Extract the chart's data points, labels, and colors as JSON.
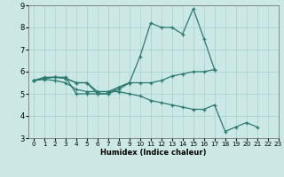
{
  "title": "",
  "xlabel": "Humidex (Indice chaleur)",
  "bg_color": "#cce8e4",
  "grid_color": "#aad4d0",
  "line_color": "#2a7a6e",
  "xlim": [
    -0.5,
    23
  ],
  "ylim": [
    3,
    9
  ],
  "yticks": [
    3,
    4,
    5,
    6,
    7,
    8,
    9
  ],
  "xticks": [
    0,
    1,
    2,
    3,
    4,
    5,
    6,
    7,
    8,
    9,
    10,
    11,
    12,
    13,
    14,
    15,
    16,
    17,
    18,
    19,
    20,
    21,
    22,
    23
  ],
  "lines": [
    [
      5.6,
      5.75,
      5.75,
      5.75,
      5.0,
      5.0,
      5.0,
      5.0,
      5.3,
      5.5,
      6.7,
      8.2,
      8.0,
      8.0,
      7.7,
      8.85,
      7.5,
      6.1,
      null,
      null,
      null,
      null,
      null,
      null
    ],
    [
      5.6,
      5.7,
      5.75,
      5.7,
      5.5,
      5.5,
      5.0,
      5.0,
      5.2,
      5.5,
      null,
      null,
      null,
      null,
      null,
      null,
      null,
      null,
      null,
      null,
      null,
      null,
      null,
      null
    ],
    [
      5.6,
      5.7,
      5.75,
      5.7,
      5.5,
      5.5,
      5.1,
      5.1,
      5.3,
      5.5,
      5.5,
      5.5,
      5.6,
      5.8,
      5.9,
      6.0,
      6.0,
      6.1,
      null,
      null,
      null,
      null,
      null,
      null
    ],
    [
      5.6,
      5.65,
      5.6,
      5.5,
      5.2,
      5.1,
      5.1,
      5.1,
      5.1,
      5.0,
      4.9,
      4.7,
      4.6,
      4.5,
      4.4,
      4.3,
      4.3,
      4.5,
      3.3,
      3.5,
      3.7,
      3.5,
      null,
      null
    ]
  ]
}
